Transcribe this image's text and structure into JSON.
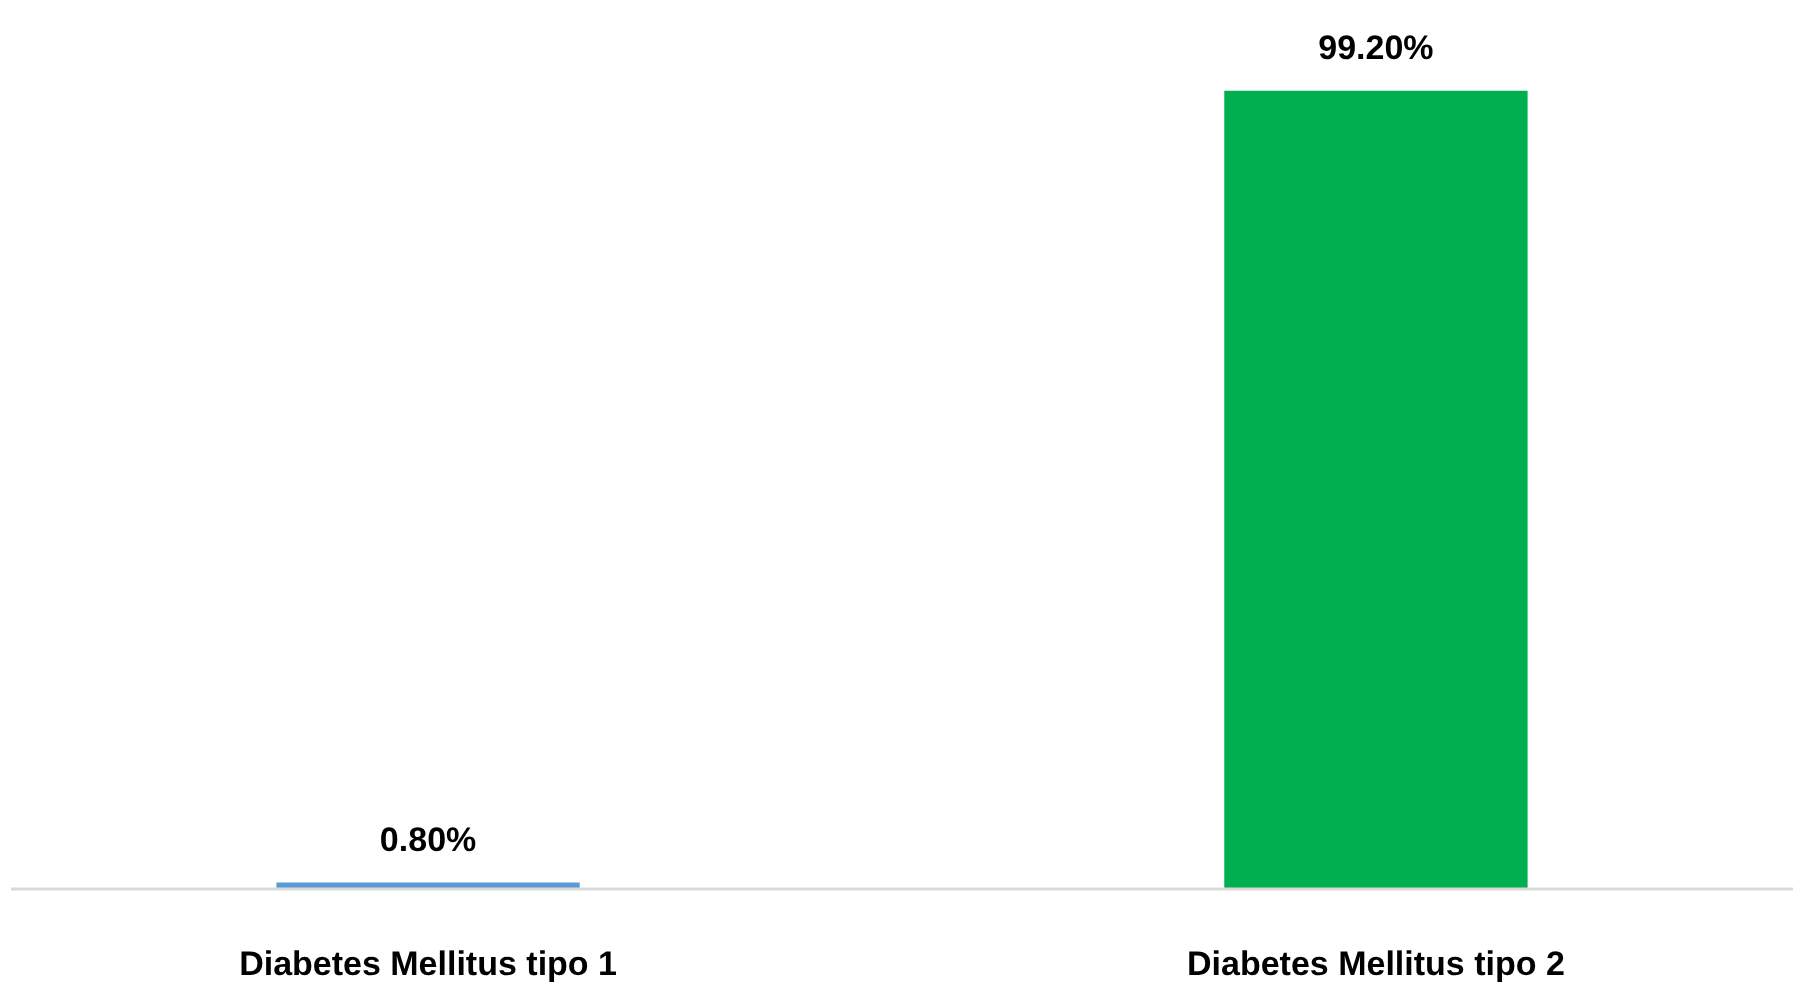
{
  "chart_data": {
    "type": "bar",
    "categories": [
      "Diabetes Mellitus tipo 1",
      "Diabetes Mellitus tipo 2"
    ],
    "values": [
      0.8,
      99.2
    ],
    "colors": [
      "#5b9bd5",
      "#00b050"
    ],
    "value_labels": [
      "0.80%",
      "99.20%"
    ],
    "grid": false
  }
}
